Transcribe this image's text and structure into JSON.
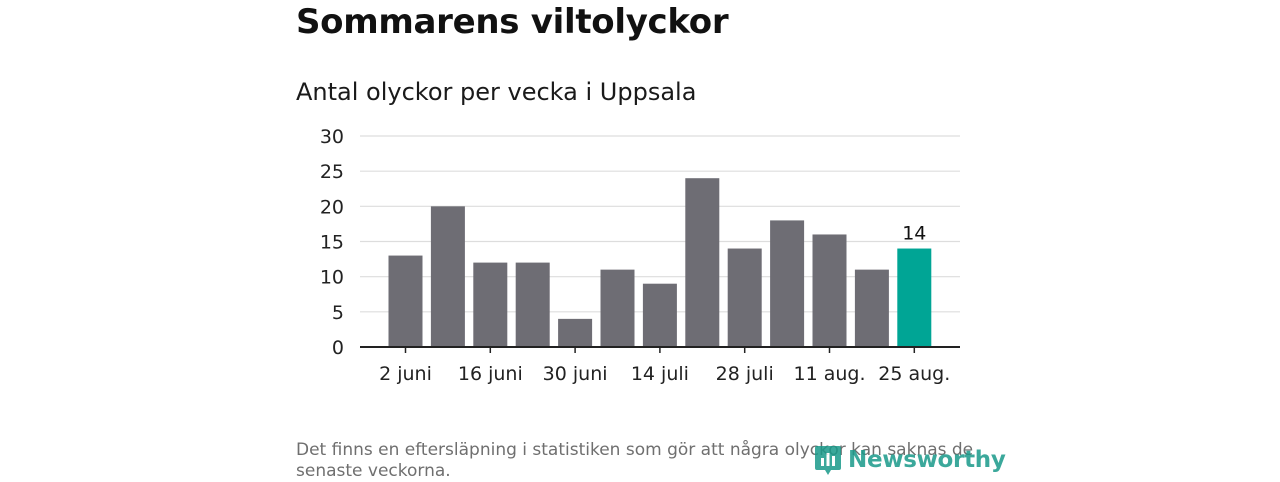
{
  "title": "Sommarens viltolyckor",
  "subtitle": "Antal olyckor per vecka i Uppsala",
  "note": "Det finns en eftersläpning i statistiken som gör att några olyckor kan saknas de senaste veckorna.",
  "brand": "Newsworthy",
  "colors": {
    "bar": "#6e6d74",
    "highlight": "#00a595",
    "grid": "#dddddd",
    "axis": "#222222",
    "brand": "#1a9a8a"
  },
  "chart_data": {
    "type": "bar",
    "title": "Antal olyckor per vecka i Uppsala",
    "values": [
      13,
      20,
      12,
      12,
      4,
      11,
      9,
      24,
      14,
      18,
      16,
      11,
      14
    ],
    "x_tick_labels": [
      "2 juni",
      "16 juni",
      "30 juni",
      "14 juli",
      "28 juli",
      "11 aug.",
      "25 aug."
    ],
    "y_ticks": [
      0,
      5,
      10,
      15,
      20,
      25,
      30
    ],
    "ylim": [
      0,
      30
    ],
    "grid": true,
    "highlight_index": 12,
    "highlight_label": "14"
  }
}
